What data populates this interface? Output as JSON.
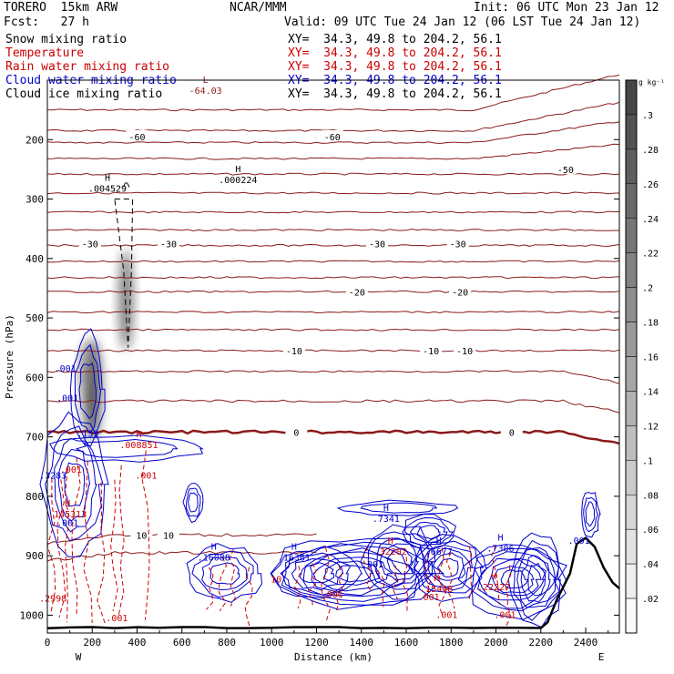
{
  "header": {
    "model": "TORERO  15km ARW",
    "org": "NCAR/MMM",
    "init": "Init: 06 UTC Mon 23 Jan 12",
    "fcst": "Fcst:   27 h",
    "valid": "Valid: 09 UTC Tue 24 Jan 12 (06 LST Tue 24 Jan 12)",
    "fields": [
      {
        "label": "Snow mixing ratio",
        "color": "#000000",
        "xy": "XY=  34.3, 49.8 to 204.2, 56.1",
        "xy_color": "#000000"
      },
      {
        "label": "Temperature",
        "color": "#cc0000",
        "xy": "XY=  34.3, 49.8 to 204.2, 56.1",
        "xy_color": "#cc0000"
      },
      {
        "label": "Rain water mixing ratio",
        "color": "#cc0000",
        "xy": "XY=  34.3, 49.8 to 204.2, 56.1",
        "xy_color": "#cc0000"
      },
      {
        "label": "Cloud water mixing ratio",
        "color": "#0000cc",
        "xy": "XY=  34.3, 49.8 to 204.2, 56.1",
        "xy_color": "#0000cc"
      },
      {
        "label": "Cloud ice mixing ratio",
        "color": "#000000",
        "xy": "XY=  34.3, 49.8 to 204.2, 56.1",
        "xy_color": "#000000"
      }
    ]
  },
  "colors": {
    "temperature": "#8b1a1a",
    "rain": "#cc0000",
    "cloud_water": "#0000cc",
    "terrain": "#000000"
  },
  "chart_data": {
    "type": "contour",
    "xlabel": "Distance (km)",
    "ylabel": "Pressure (hPa)",
    "xlim": [
      0,
      2550
    ],
    "ylim": [
      1030,
      100
    ],
    "xticks": [
      0,
      200,
      400,
      600,
      800,
      1000,
      1200,
      1400,
      1600,
      1800,
      2000,
      2200,
      2400
    ],
    "yticks": [
      200,
      300,
      400,
      500,
      600,
      700,
      800,
      900,
      1000
    ],
    "end_labels": {
      "left": "W",
      "right": "E"
    },
    "colorbar": {
      "unit": "g kg⁻¹",
      "ticks": [
        ".3",
        ".28",
        ".26",
        ".24",
        ".22",
        ".2",
        ".18",
        ".16",
        ".14",
        ".12",
        ".1",
        ".08",
        ".06",
        ".04",
        ".02"
      ]
    },
    "temperature_contours": [
      {
        "label": "-60",
        "p": 195,
        "x_label": [
          400,
          1270
        ]
      },
      {
        "label": "-50",
        "p": 250,
        "x_label": [
          2310
        ]
      },
      {
        "label": "-30",
        "p": 375,
        "x_label": [
          190,
          540,
          1470,
          1830
        ]
      },
      {
        "label": "-20",
        "p": 456,
        "x_label": [
          1380,
          1840
        ]
      },
      {
        "label": "-10",
        "p": 555,
        "x_label": [
          1100,
          1710,
          1860
        ]
      },
      {
        "label": "0",
        "p": 692,
        "x_label": [
          1110,
          2070
        ]
      },
      {
        "label": "10",
        "p": 865,
        "x_label": [
          420,
          540
        ]
      }
    ],
    "extrema_labels": [
      {
        "type": "L",
        "value": "-64.03",
        "x": 705,
        "p": 120,
        "color": "#8b1a1a"
      },
      {
        "type": "H",
        "value": ".004529",
        "x": 268,
        "p": 285,
        "color": "#000000"
      },
      {
        "type": "H",
        "value": ".000224",
        "x": 850,
        "p": 270,
        "color": "#000000"
      },
      {
        "type": "H",
        "value": ".008851",
        "x": 408,
        "p": 716,
        "color": "#cc0000"
      },
      {
        "type": "H",
        "value": ".145313",
        "x": 90,
        "p": 832,
        "color": "#cc0000"
      },
      {
        "type": "H",
        "value": ".16088",
        "x": 742,
        "p": 905,
        "color": "#0000cc"
      },
      {
        "type": "H",
        "value": ".16361",
        "x": 1100,
        "p": 905,
        "color": "#0000cc"
      },
      {
        "type": "H",
        "value": ".7341",
        "x": 1510,
        "p": 840,
        "color": "#0000cc"
      },
      {
        "type": "H",
        "value": ".32202",
        "x": 1530,
        "p": 895,
        "color": "#cc0000"
      },
      {
        "type": "H",
        "value": ".6677",
        "x": 1745,
        "p": 895,
        "color": "#0000cc"
      },
      {
        "type": "H",
        "value": ".7306",
        "x": 2020,
        "p": 890,
        "color": "#0000cc"
      },
      {
        "type": "H",
        "value": ".15448",
        "x": 1735,
        "p": 958,
        "color": "#cc0000"
      },
      {
        "type": "H",
        "value": ".22227",
        "x": 1990,
        "p": 955,
        "color": "#cc0000"
      }
    ],
    "small_labels": [
      {
        "text": ".001",
        "x": 80,
        "p": 590,
        "color": "#0000cc"
      },
      {
        "text": ".001",
        "x": 90,
        "p": 640,
        "color": "#0000cc"
      },
      {
        "text": ".139",
        "x": 180,
        "p": 700,
        "color": "#0000cc"
      },
      {
        "text": ".001",
        "x": 440,
        "p": 770,
        "color": "#cc0000"
      },
      {
        "text": ".001",
        "x": 105,
        "p": 760,
        "color": "#cc0000"
      },
      {
        "text": ".3283",
        "x": 25,
        "p": 770,
        "color": "#0000cc"
      },
      {
        "text": ".001",
        "x": 90,
        "p": 850,
        "color": "#0000cc"
      },
      {
        "text": ".001",
        "x": 1270,
        "p": 970,
        "color": "#cc0000"
      },
      {
        "text": ".001",
        "x": 1450,
        "p": 920,
        "color": "#0000cc"
      },
      {
        "text": ".001",
        "x": 1700,
        "p": 975,
        "color": "#cc0000"
      },
      {
        "text": ".001",
        "x": 1780,
        "p": 1005,
        "color": "#cc0000"
      },
      {
        "text": ".001",
        "x": 2040,
        "p": 1005,
        "color": "#cc0000"
      },
      {
        "text": ".001",
        "x": 310,
        "p": 1010,
        "color": "#cc0000"
      },
      {
        "text": ".001",
        "x": 2370,
        "p": 880,
        "color": "#0000cc"
      },
      {
        "text": ".2998",
        "x": 25,
        "p": 977,
        "color": "#cc0000"
      },
      {
        "text": "10",
        "x": 1020,
        "p": 945,
        "color": "#cc0000"
      }
    ]
  }
}
